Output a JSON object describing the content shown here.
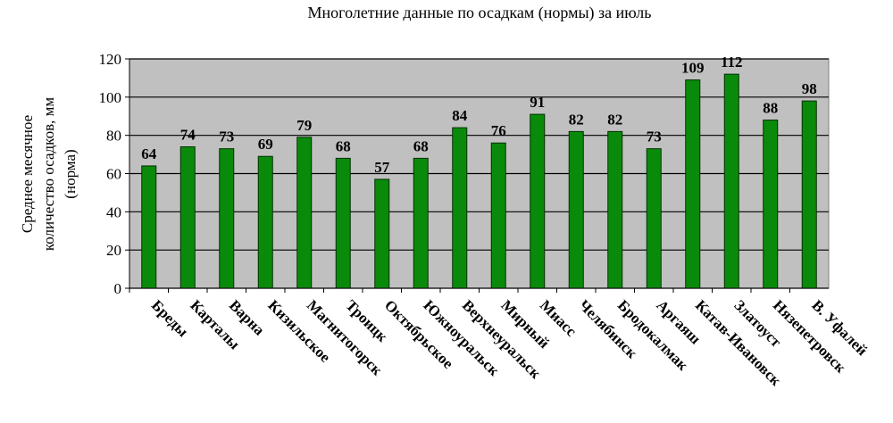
{
  "chart_data": {
    "type": "bar",
    "title": "Многолетние данные по осадкам (нормы) за июль",
    "y_label": [
      "Среднее месячное",
      "количество осадков, мм",
      "(норма)"
    ],
    "categories": [
      "Бреды",
      "Карталы",
      "Варна",
      "Кизильское",
      "Магнитогорск",
      "Троицк",
      "Октябрьское",
      "Южноуральск",
      "Верхнеуральск",
      "Мирный",
      "Миасс",
      "Челябинск",
      "Бродокалмак",
      "Аргаяш",
      "Катав-Ивановск",
      "Златоуст",
      "Нязепетровск",
      "В. Уфалей"
    ],
    "values": [
      64,
      74,
      73,
      69,
      79,
      68,
      57,
      68,
      84,
      76,
      91,
      82,
      82,
      73,
      109,
      112,
      88,
      98
    ],
    "color": "#0a8a0a",
    "ylim": [
      0,
      120
    ],
    "yticks": [
      0,
      20,
      40,
      60,
      80,
      100,
      120
    ],
    "grid": true
  }
}
